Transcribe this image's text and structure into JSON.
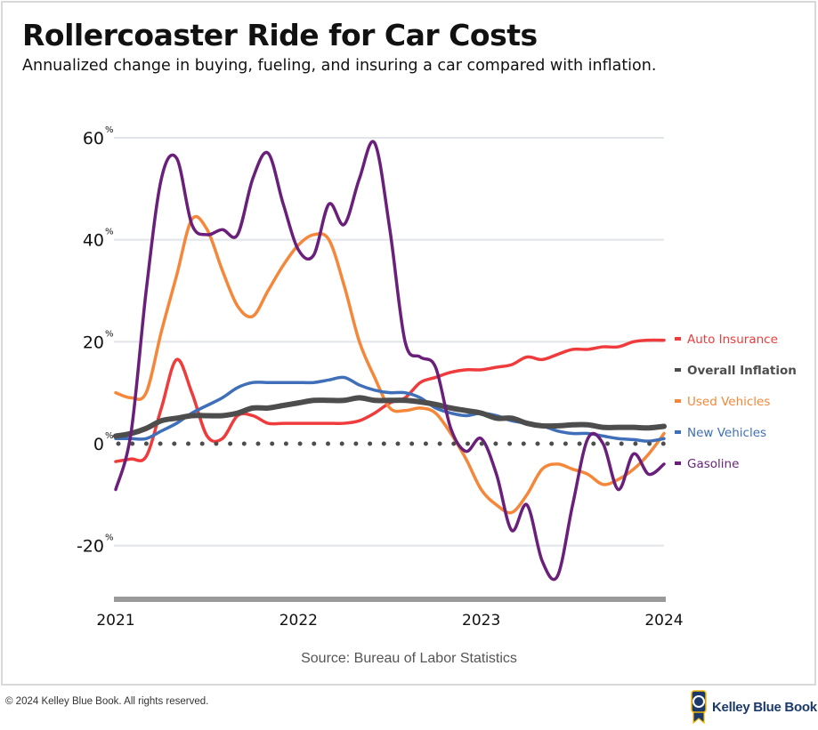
{
  "title": "Rollercoaster Ride for Car Costs",
  "subtitle": "Annualized change in buying, fueling, and insuring a car compared with inflation.",
  "source": "Source: Bureau of Labor Statistics",
  "footer": "© 2024 Kelley Blue Book. All rights reserved.",
  "logo_text": "Kelley Blue Book",
  "chart_data": {
    "type": "line",
    "x_start": "2021-01",
    "x_end": "2024-01",
    "x_interval": "monthly",
    "xtick_labels": [
      "2021",
      "2022",
      "2023",
      "2024"
    ],
    "ytick_labels": [
      "60%",
      "40%",
      "20%",
      "0%",
      "-20%"
    ],
    "yticks": [
      60,
      40,
      20,
      0,
      -20
    ],
    "ylim": [
      -30,
      60
    ],
    "grid": true,
    "zero_line": "dotted",
    "legend_placement": "right",
    "series": [
      {
        "name": "Auto Insurance",
        "color": "#ef3b3b",
        "values": [
          -3.5,
          -3,
          -2.5,
          7,
          16.5,
          10,
          1.5,
          1,
          5.5,
          5.5,
          4,
          4,
          4,
          4,
          4,
          4,
          4.5,
          6,
          8,
          9,
          12,
          13,
          14,
          14.5,
          14.5,
          15,
          15.5,
          17,
          16.5,
          17.5,
          18.5,
          18.5,
          19,
          19,
          20,
          20.3,
          20.3
        ]
      },
      {
        "name": "Overall Inflation",
        "color": "#4d4d4d",
        "values": [
          1.5,
          2,
          3,
          4.5,
          5,
          5.5,
          5.5,
          5.5,
          6,
          7,
          7,
          7.5,
          8,
          8.5,
          8.5,
          8.5,
          9,
          8.5,
          8.5,
          8.5,
          8.2,
          7.7,
          7,
          6.5,
          6,
          5,
          5,
          4,
          3.5,
          3.5,
          3.7,
          3.7,
          3.2,
          3.2,
          3.2,
          3.1,
          3.4
        ]
      },
      {
        "name": "Used Vehicles",
        "color": "#f5873a",
        "values": [
          10,
          9,
          10,
          22,
          33,
          44,
          42,
          34,
          27,
          25,
          30,
          35,
          39,
          41,
          40,
          31,
          20,
          13,
          7,
          6.5,
          7,
          6,
          2,
          -3,
          -9,
          -12,
          -13.5,
          -10,
          -5,
          -4,
          -5,
          -6,
          -8,
          -7,
          -5,
          -2,
          2
        ]
      },
      {
        "name": "New Vehicles",
        "color": "#3f6fb8",
        "values": [
          1,
          1,
          1,
          2.5,
          4,
          6,
          7.5,
          9,
          11,
          12,
          12,
          12,
          12,
          12,
          12.5,
          13,
          11.5,
          10.5,
          10,
          10,
          9,
          7,
          6,
          5.5,
          6,
          5.5,
          4.5,
          4,
          3.5,
          2.5,
          2,
          2,
          1.5,
          1,
          0.8,
          0.5,
          1
        ]
      },
      {
        "name": "Gasoline",
        "color": "#6a1f7a",
        "values": [
          -9,
          2,
          30,
          52,
          56,
          43,
          41,
          42,
          41,
          52,
          57,
          47,
          38,
          37,
          47,
          43,
          52,
          59,
          42,
          20,
          17,
          15,
          3,
          -1.5,
          1,
          -6,
          -17,
          -12,
          -23,
          -26,
          -12,
          1,
          0,
          -9,
          -2,
          -6,
          -4
        ]
      }
    ]
  }
}
